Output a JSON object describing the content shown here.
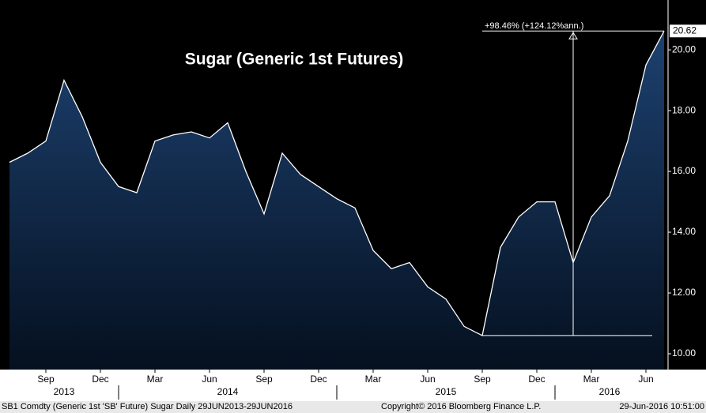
{
  "chart_data": {
    "type": "area",
    "title": "Sugar (Generic 1st Futures)",
    "x": [
      "2013-07",
      "2013-08",
      "2013-09",
      "2013-10",
      "2013-11",
      "2013-12",
      "2014-01",
      "2014-02",
      "2014-03",
      "2014-04",
      "2014-05",
      "2014-06",
      "2014-07",
      "2014-08",
      "2014-09",
      "2014-10",
      "2014-11",
      "2014-12",
      "2015-01",
      "2015-02",
      "2015-03",
      "2015-04",
      "2015-05",
      "2015-06",
      "2015-07",
      "2015-08",
      "2015-09",
      "2015-10",
      "2015-11",
      "2015-12",
      "2016-01",
      "2016-02",
      "2016-03",
      "2016-04",
      "2016-05",
      "2016-06",
      "2016-07"
    ],
    "series": [
      {
        "name": "SB1 Comdty",
        "color": "#ffffff",
        "values": [
          16.3,
          16.6,
          17.0,
          19.0,
          17.8,
          16.3,
          15.5,
          15.3,
          17.0,
          17.2,
          17.3,
          17.1,
          17.6,
          16.0,
          14.6,
          16.6,
          15.9,
          15.5,
          15.1,
          14.8,
          13.4,
          12.8,
          13.0,
          12.2,
          11.8,
          10.9,
          10.6,
          13.5,
          14.5,
          15.0,
          15.0,
          13.0,
          14.5,
          15.2,
          17.0,
          19.5,
          20.62
        ]
      }
    ],
    "xlim": [
      "2013-07",
      "2016-07"
    ],
    "xticks": [
      {
        "value": "2013-09",
        "label": "Sep"
      },
      {
        "value": "2013-12",
        "label": "Dec"
      },
      {
        "value": "2014-03",
        "label": "Mar"
      },
      {
        "value": "2014-06",
        "label": "Jun"
      },
      {
        "value": "2014-09",
        "label": "Sep"
      },
      {
        "value": "2014-12",
        "label": "Dec"
      },
      {
        "value": "2015-03",
        "label": "Mar"
      },
      {
        "value": "2015-06",
        "label": "Jun"
      },
      {
        "value": "2015-09",
        "label": "Sep"
      },
      {
        "value": "2015-12",
        "label": "Dec"
      },
      {
        "value": "2016-03",
        "label": "Mar"
      },
      {
        "value": "2016-06",
        "label": "Jun"
      }
    ],
    "years": [
      "2013",
      "2014",
      "2015",
      "2016"
    ],
    "ylim": [
      9.48,
      21.64
    ],
    "yticks": [
      {
        "value": 10,
        "label": "10.00"
      },
      {
        "value": 12,
        "label": "12.00"
      },
      {
        "value": 14,
        "label": "14.00"
      },
      {
        "value": 16,
        "label": "16.00"
      },
      {
        "value": 18,
        "label": "18.00"
      },
      {
        "value": 20,
        "label": "20.00"
      }
    ],
    "annotation": "+98.46% (+124.12%ann.)",
    "footer": {
      "left": "SB1 Comdty (Generic 1st 'SB' Future) Sugar  Daily 29JUN2013-29JUN2016",
      "center": "Copyright© 2016 Bloomberg Finance L.P.",
      "right": "29-Jun-2016 10:51:00"
    }
  }
}
